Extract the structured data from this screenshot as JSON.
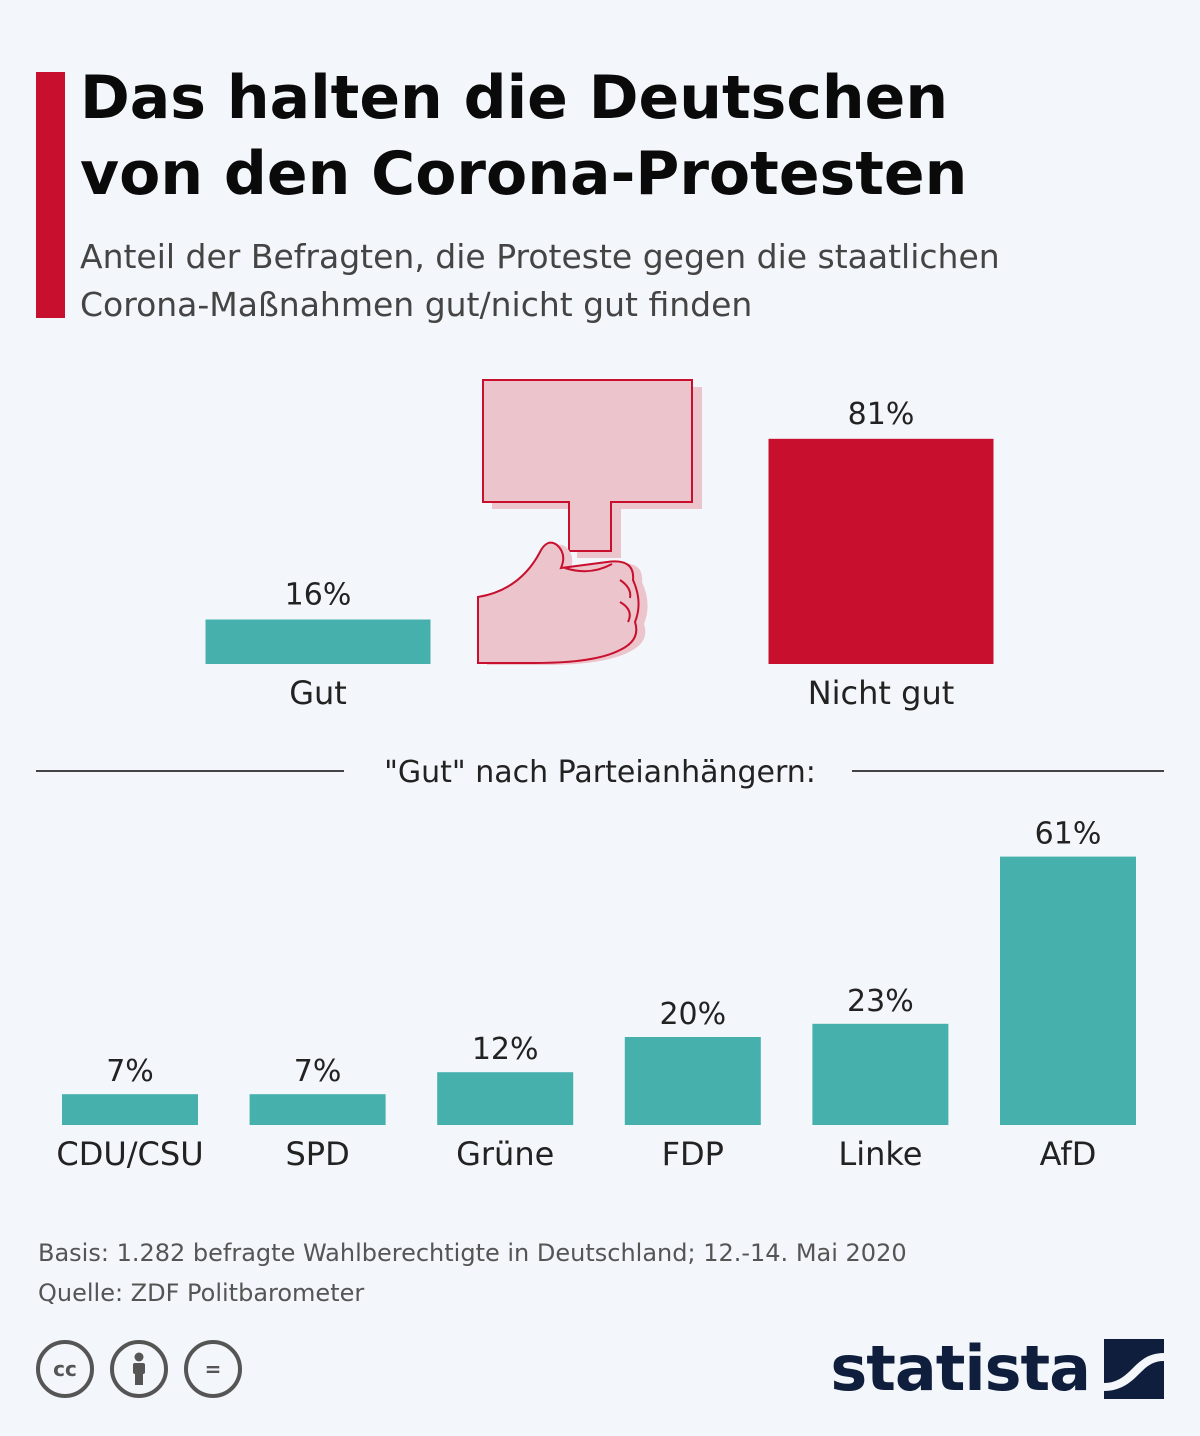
{
  "header": {
    "title_lines": [
      "Das halten die Deutschen",
      "von den Corona-Protesten"
    ],
    "subtitle_lines": [
      "Anteil der Befragten, die Proteste gegen die staatlichen",
      "Corona-Maßnahmen gut/nicht gut finden"
    ]
  },
  "chart_data": [
    {
      "type": "bar",
      "categories": [
        "Gut",
        "Nicht gut"
      ],
      "values": [
        16,
        81
      ],
      "value_labels": [
        "16%",
        "81%"
      ],
      "colors": [
        "#45b0ac",
        "#c8102e"
      ],
      "unit": "%",
      "title": "",
      "xlabel": "",
      "ylabel": "",
      "grid": false
    },
    {
      "type": "bar",
      "title": "\"Gut\" nach Parteianhängern:",
      "categories": [
        "CDU/CSU",
        "SPD",
        "Grüne",
        "FDP",
        "Linke",
        "AfD"
      ],
      "values": [
        7,
        7,
        12,
        20,
        23,
        61
      ],
      "value_labels": [
        "7%",
        "7%",
        "12%",
        "20%",
        "23%",
        "61%"
      ],
      "color": "#45b0ac",
      "unit": "%",
      "xlabel": "",
      "ylabel": "",
      "grid": false
    }
  ],
  "illustration": {
    "icon": "protest-sign-fist-icon",
    "fill": "#ecc4cb",
    "stroke": "#c8102e"
  },
  "footer": {
    "basis": "Basis: 1.282 befragte Wahlberechtigte in Deutschland; 12.-14. Mai 2020",
    "source": "Quelle: ZDF Politbarometer"
  },
  "license_icons": [
    {
      "icon": "cc-icon",
      "glyph": "cc"
    },
    {
      "icon": "by-attribution-icon",
      "glyph": ""
    },
    {
      "icon": "nd-no-derivatives-icon",
      "glyph": "="
    }
  ],
  "brand": {
    "name": "statista",
    "color": "#0f1e3c"
  }
}
